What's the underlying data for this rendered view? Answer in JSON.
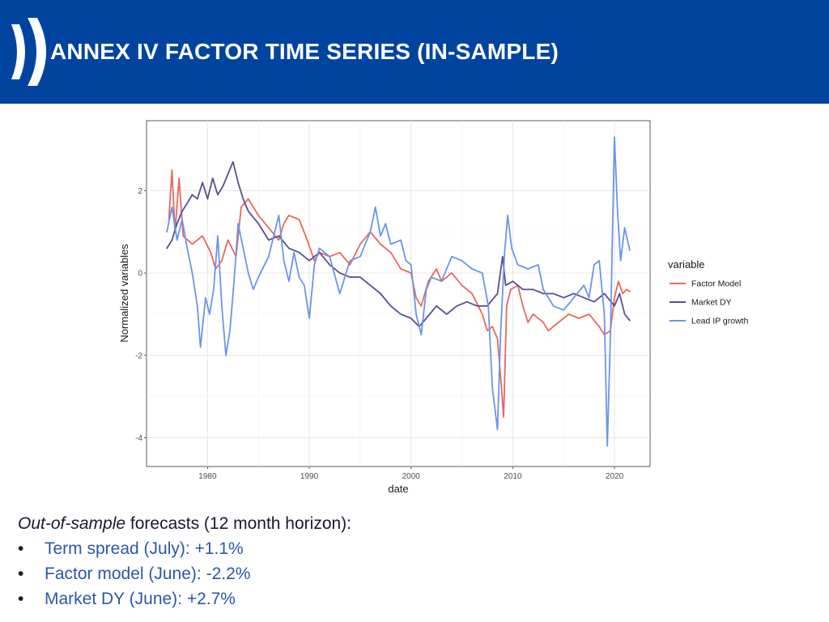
{
  "header": {
    "title": "ANNEX IV FACTOR TIME SERIES (IN-SAMPLE)",
    "background": "#0044a0"
  },
  "notes": {
    "lead_italic": "Out-of-sample",
    "lead_rest": " forecasts (12 month horizon):",
    "bullets": [
      "Term spread (July): +1.1%",
      "Factor model (June): -2.2%",
      "Market DY (June): +2.7%"
    ]
  },
  "chart_data": {
    "type": "line",
    "xlabel": "date",
    "ylabel": "Normalized variables",
    "xlim": [
      1974.0,
      2023.5
    ],
    "ylim": [
      -4.7,
      3.7
    ],
    "x_ticks": [
      1980,
      1990,
      2000,
      2010,
      2020
    ],
    "x_tick_labels": [
      "1980",
      "1990",
      "2000",
      "2010",
      "2020"
    ],
    "y_ticks": [
      -4,
      -2,
      0,
      2
    ],
    "y_tick_labels": [
      "-4",
      "-2",
      "0",
      "2"
    ],
    "grid": true,
    "legend": {
      "title": "variable",
      "position": "right"
    },
    "series": [
      {
        "name": "Factor Model",
        "color": "#e8685d",
        "points": [
          [
            1976.2,
            1.3
          ],
          [
            1976.5,
            2.5
          ],
          [
            1976.8,
            1.0
          ],
          [
            1977.2,
            2.3
          ],
          [
            1977.6,
            0.9
          ],
          [
            1978.5,
            0.7
          ],
          [
            1979.5,
            0.9
          ],
          [
            1980.3,
            0.5
          ],
          [
            1980.8,
            0.1
          ],
          [
            1981.4,
            0.3
          ],
          [
            1982.0,
            0.8
          ],
          [
            1982.8,
            0.4
          ],
          [
            1983.3,
            1.6
          ],
          [
            1984.0,
            1.8
          ],
          [
            1985.0,
            1.4
          ],
          [
            1986.0,
            1.1
          ],
          [
            1987.0,
            0.8
          ],
          [
            1987.5,
            1.2
          ],
          [
            1988.0,
            1.4
          ],
          [
            1989.0,
            1.3
          ],
          [
            1989.8,
            0.8
          ],
          [
            1990.5,
            0.3
          ],
          [
            1991.0,
            0.5
          ],
          [
            1992.0,
            0.4
          ],
          [
            1993.0,
            0.5
          ],
          [
            1994.0,
            0.2
          ],
          [
            1995.0,
            0.7
          ],
          [
            1996.0,
            1.0
          ],
          [
            1997.0,
            0.7
          ],
          [
            1998.0,
            0.5
          ],
          [
            1998.5,
            0.3
          ],
          [
            1999.0,
            0.1
          ],
          [
            2000.0,
            0.0
          ],
          [
            2000.5,
            -0.6
          ],
          [
            2001.0,
            -0.8
          ],
          [
            2001.7,
            -0.2
          ],
          [
            2002.5,
            0.1
          ],
          [
            2003.0,
            -0.2
          ],
          [
            2004.0,
            0.0
          ],
          [
            2005.0,
            -0.3
          ],
          [
            2006.0,
            -0.5
          ],
          [
            2007.0,
            -1.0
          ],
          [
            2007.5,
            -1.4
          ],
          [
            2008.0,
            -1.3
          ],
          [
            2008.5,
            -1.6
          ],
          [
            2008.9,
            -2.8
          ],
          [
            2009.1,
            -3.5
          ],
          [
            2009.4,
            -0.8
          ],
          [
            2009.8,
            -0.4
          ],
          [
            2010.5,
            -0.3
          ],
          [
            2011.0,
            -0.8
          ],
          [
            2011.5,
            -1.2
          ],
          [
            2012.0,
            -1.0
          ],
          [
            2013.0,
            -1.2
          ],
          [
            2013.5,
            -1.4
          ],
          [
            2014.5,
            -1.2
          ],
          [
            2015.5,
            -1.0
          ],
          [
            2016.5,
            -1.1
          ],
          [
            2017.5,
            -1.0
          ],
          [
            2018.5,
            -1.3
          ],
          [
            2019.0,
            -1.5
          ],
          [
            2019.6,
            -1.4
          ],
          [
            2020.0,
            -0.6
          ],
          [
            2020.4,
            -0.2
          ],
          [
            2020.8,
            -0.5
          ],
          [
            2021.2,
            -0.4
          ],
          [
            2021.5,
            -0.45
          ]
        ]
      },
      {
        "name": "Market DY",
        "color": "#5a4e96",
        "points": [
          [
            1976.0,
            0.6
          ],
          [
            1976.5,
            0.8
          ],
          [
            1977.0,
            1.2
          ],
          [
            1977.5,
            1.5
          ],
          [
            1978.0,
            1.7
          ],
          [
            1978.5,
            1.9
          ],
          [
            1979.0,
            1.8
          ],
          [
            1979.5,
            2.2
          ],
          [
            1980.0,
            1.8
          ],
          [
            1980.5,
            2.3
          ],
          [
            1981.0,
            1.9
          ],
          [
            1981.5,
            2.1
          ],
          [
            1982.0,
            2.4
          ],
          [
            1982.5,
            2.7
          ],
          [
            1983.0,
            2.2
          ],
          [
            1983.5,
            1.8
          ],
          [
            1984.0,
            1.5
          ],
          [
            1985.0,
            1.2
          ],
          [
            1986.0,
            0.8
          ],
          [
            1987.0,
            0.9
          ],
          [
            1988.0,
            0.6
          ],
          [
            1989.0,
            0.5
          ],
          [
            1990.0,
            0.3
          ],
          [
            1991.0,
            0.5
          ],
          [
            1992.0,
            0.2
          ],
          [
            1993.0,
            0.0
          ],
          [
            1994.0,
            -0.1
          ],
          [
            1995.0,
            -0.1
          ],
          [
            1996.0,
            -0.3
          ],
          [
            1997.0,
            -0.5
          ],
          [
            1998.0,
            -0.8
          ],
          [
            1999.0,
            -1.0
          ],
          [
            2000.0,
            -1.1
          ],
          [
            2000.8,
            -1.3
          ],
          [
            2001.5,
            -1.1
          ],
          [
            2002.5,
            -0.8
          ],
          [
            2003.5,
            -1.0
          ],
          [
            2004.5,
            -0.8
          ],
          [
            2005.5,
            -0.7
          ],
          [
            2006.5,
            -0.8
          ],
          [
            2007.5,
            -0.8
          ],
          [
            2008.5,
            -0.5
          ],
          [
            2009.0,
            0.4
          ],
          [
            2009.3,
            -0.3
          ],
          [
            2010.0,
            -0.2
          ],
          [
            2011.0,
            -0.4
          ],
          [
            2012.0,
            -0.4
          ],
          [
            2013.0,
            -0.5
          ],
          [
            2014.0,
            -0.5
          ],
          [
            2015.0,
            -0.6
          ],
          [
            2016.0,
            -0.5
          ],
          [
            2017.0,
            -0.6
          ],
          [
            2018.0,
            -0.7
          ],
          [
            2019.0,
            -0.5
          ],
          [
            2020.0,
            -0.8
          ],
          [
            2020.5,
            -0.5
          ],
          [
            2021.0,
            -1.0
          ],
          [
            2021.5,
            -1.15
          ]
        ]
      },
      {
        "name": "Lead IP growth",
        "color": "#6a94ec",
        "points": [
          [
            1976.0,
            1.0
          ],
          [
            1976.5,
            1.6
          ],
          [
            1977.0,
            0.8
          ],
          [
            1977.5,
            1.3
          ],
          [
            1978.0,
            0.6
          ],
          [
            1978.5,
            0.0
          ],
          [
            1979.0,
            -0.8
          ],
          [
            1979.3,
            -1.8
          ],
          [
            1979.8,
            -0.6
          ],
          [
            1980.2,
            -1.0
          ],
          [
            1980.6,
            -0.4
          ],
          [
            1981.0,
            0.9
          ],
          [
            1981.4,
            -0.8
          ],
          [
            1981.8,
            -2.0
          ],
          [
            1982.2,
            -1.4
          ],
          [
            1982.6,
            -0.2
          ],
          [
            1983.0,
            1.2
          ],
          [
            1983.5,
            0.6
          ],
          [
            1984.0,
            0.0
          ],
          [
            1984.5,
            -0.4
          ],
          [
            1985.0,
            -0.1
          ],
          [
            1986.0,
            0.4
          ],
          [
            1987.0,
            1.4
          ],
          [
            1987.5,
            0.3
          ],
          [
            1988.0,
            -0.2
          ],
          [
            1988.5,
            0.5
          ],
          [
            1989.0,
            -0.1
          ],
          [
            1989.5,
            -0.3
          ],
          [
            1990.0,
            -1.1
          ],
          [
            1990.5,
            0.2
          ],
          [
            1991.0,
            0.6
          ],
          [
            1992.0,
            0.4
          ],
          [
            1993.0,
            -0.5
          ],
          [
            1994.0,
            0.3
          ],
          [
            1995.0,
            0.4
          ],
          [
            1996.0,
            1.0
          ],
          [
            1996.5,
            1.6
          ],
          [
            1997.0,
            0.9
          ],
          [
            1997.5,
            1.2
          ],
          [
            1998.0,
            0.7
          ],
          [
            1999.0,
            0.8
          ],
          [
            1999.5,
            0.3
          ],
          [
            2000.0,
            0.2
          ],
          [
            2000.5,
            -1.0
          ],
          [
            2001.0,
            -1.5
          ],
          [
            2001.5,
            -0.4
          ],
          [
            2002.0,
            -0.1
          ],
          [
            2003.0,
            -0.2
          ],
          [
            2004.0,
            0.4
          ],
          [
            2005.0,
            0.3
          ],
          [
            2006.0,
            0.1
          ],
          [
            2007.0,
            0.0
          ],
          [
            2007.6,
            -0.8
          ],
          [
            2008.0,
            -2.8
          ],
          [
            2008.5,
            -3.8
          ],
          [
            2008.8,
            -1.5
          ],
          [
            2009.2,
            0.5
          ],
          [
            2009.5,
            1.4
          ],
          [
            2009.9,
            0.6
          ],
          [
            2010.5,
            0.2
          ],
          [
            2011.5,
            0.1
          ],
          [
            2012.5,
            0.2
          ],
          [
            2013.0,
            -0.4
          ],
          [
            2014.0,
            -0.8
          ],
          [
            2015.0,
            -0.9
          ],
          [
            2016.0,
            -0.6
          ],
          [
            2017.0,
            -0.3
          ],
          [
            2017.5,
            -0.6
          ],
          [
            2018.0,
            0.2
          ],
          [
            2018.5,
            0.3
          ],
          [
            2019.0,
            -1.0
          ],
          [
            2019.3,
            -4.2
          ],
          [
            2019.6,
            -1.5
          ],
          [
            2020.0,
            3.3
          ],
          [
            2020.3,
            1.5
          ],
          [
            2020.6,
            0.3
          ],
          [
            2021.0,
            1.1
          ],
          [
            2021.5,
            0.55
          ]
        ]
      }
    ]
  }
}
